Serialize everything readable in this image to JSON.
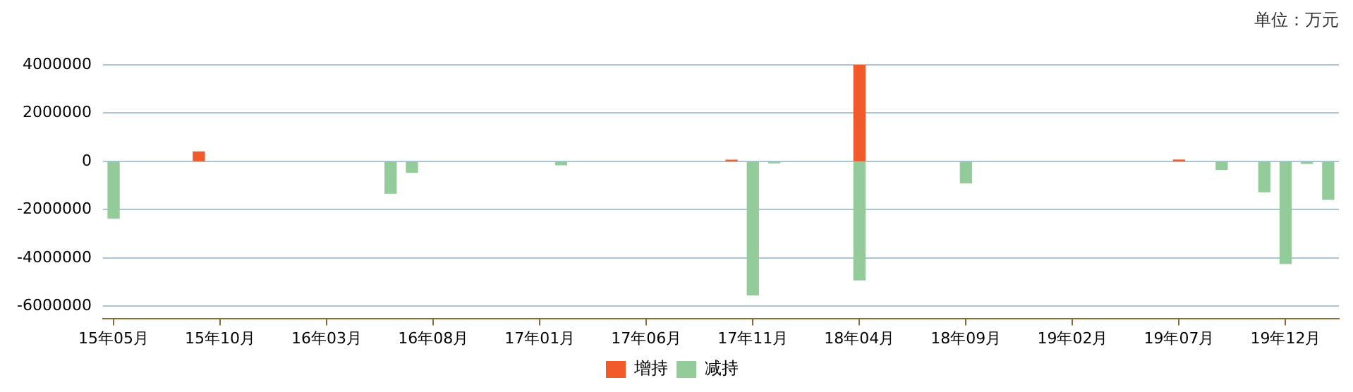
{
  "chart_data": {
    "type": "bar",
    "annotations": [
      "单位：万元"
    ],
    "categories": [
      "15年05月",
      null,
      null,
      null,
      null,
      "15年10月",
      null,
      null,
      null,
      null,
      "16年03月",
      null,
      null,
      null,
      null,
      "16年08月",
      null,
      null,
      null,
      null,
      "17年01月",
      null,
      null,
      null,
      null,
      "17年06月",
      null,
      null,
      null,
      null,
      "17年11月",
      null,
      null,
      null,
      null,
      "18年04月",
      null,
      null,
      null,
      null,
      "18年09月",
      null,
      null,
      null,
      null,
      "19年02月",
      null,
      null,
      null,
      null,
      "19年07月",
      null,
      null,
      null,
      null,
      "19年12月",
      null,
      null
    ],
    "series": [
      {
        "name": "增持",
        "color": "#f15a2b",
        "values": [
          null,
          null,
          null,
          null,
          400000,
          null,
          null,
          null,
          null,
          null,
          null,
          null,
          null,
          null,
          null,
          null,
          null,
          null,
          null,
          null,
          null,
          null,
          null,
          null,
          null,
          null,
          null,
          null,
          null,
          50000,
          null,
          null,
          null,
          null,
          null,
          4000000,
          null,
          null,
          null,
          null,
          null,
          null,
          null,
          null,
          null,
          null,
          null,
          null,
          null,
          null,
          60000,
          null,
          null,
          null,
          null,
          null,
          null,
          null
        ]
      },
      {
        "name": "减持",
        "color": "#93cb9b",
        "values": [
          -2350000,
          null,
          null,
          null,
          null,
          null,
          null,
          null,
          null,
          null,
          null,
          null,
          null,
          -1320000,
          -450000,
          null,
          null,
          null,
          null,
          null,
          null,
          -140000,
          null,
          null,
          null,
          null,
          null,
          null,
          null,
          null,
          -5530000,
          -60000,
          null,
          null,
          null,
          -4910000,
          null,
          null,
          null,
          null,
          -890000,
          null,
          null,
          null,
          null,
          null,
          null,
          null,
          null,
          null,
          null,
          null,
          -330000,
          null,
          -1260000,
          -4230000,
          -80000,
          -1570000
        ]
      }
    ],
    "ylim": [
      -6500000,
      4000000
    ],
    "yticks": [
      -6000000,
      -4000000,
      -2000000,
      0,
      2000000,
      4000000
    ],
    "grid": "y",
    "legend": "bottom"
  }
}
